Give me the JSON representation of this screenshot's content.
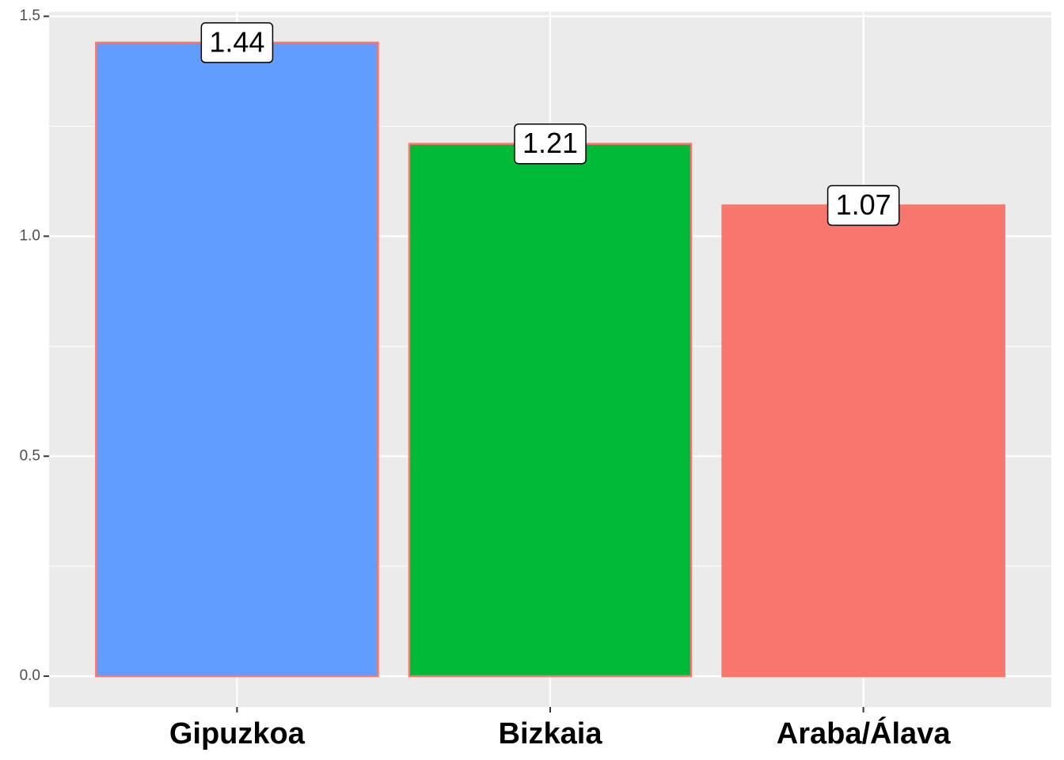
{
  "chart_data": {
    "type": "bar",
    "categories": [
      "Gipuzkoa",
      "Bizkaia",
      "Araba/Álava"
    ],
    "values": [
      1.44,
      1.21,
      1.07
    ],
    "colors": [
      "#619CFF",
      "#00BA38",
      "#F8766D"
    ],
    "edgecolor": "#F8766D",
    "ylim": [
      -0.07,
      1.51
    ],
    "yticks": [
      {
        "value": 0,
        "label": "0.0"
      },
      {
        "value": 0.5,
        "label": "0.5"
      },
      {
        "value": 1,
        "label": "1.0"
      },
      {
        "value": 1.5,
        "label": "1.5"
      }
    ],
    "grid": true
  }
}
